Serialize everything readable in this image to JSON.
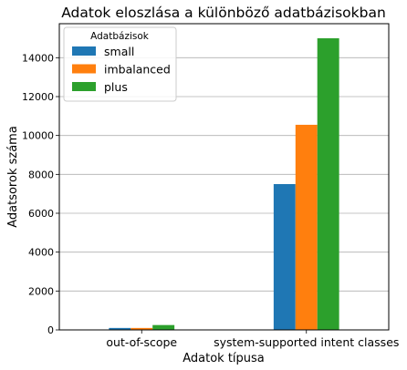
{
  "chart_data": {
    "type": "bar",
    "title": "Adatok eloszlása a különböző adatbázisokban",
    "xlabel": "Adatok típusa",
    "ylabel": "Adatsorok száma",
    "categories": [
      "out-of-scope",
      "system-supported intent classes"
    ],
    "series": [
      {
        "name": "small",
        "color": "#1f77b4",
        "values": [
          100,
          7500
        ]
      },
      {
        "name": "imbalanced",
        "color": "#ff7f0e",
        "values": [
          100,
          10550
        ]
      },
      {
        "name": "plus",
        "color": "#2ca02c",
        "values": [
          250,
          15000
        ]
      }
    ],
    "ylim": [
      0,
      15750
    ],
    "yticks": [
      0,
      2000,
      4000,
      6000,
      8000,
      10000,
      12000,
      14000
    ],
    "ytick_labels": [
      "0",
      "2000",
      "4000",
      "6000",
      "8000",
      "10000",
      "12000",
      "14000"
    ],
    "grid": "y",
    "legend": {
      "title": "Adatbázisok",
      "position": "top-left"
    }
  }
}
